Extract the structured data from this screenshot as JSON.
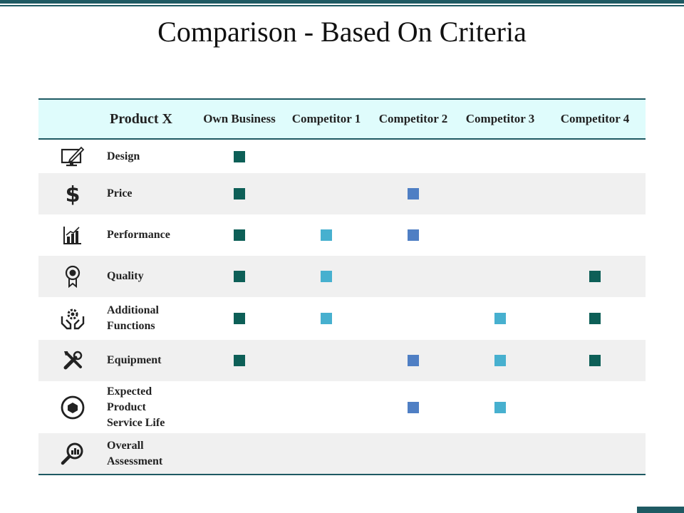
{
  "title": "Comparison - Based On Criteria",
  "colors": {
    "accent": "#1f5a63",
    "header_bg": "#dffcfc",
    "row_shade": "#f0f0f0",
    "own_business": "#0d5f57",
    "competitor_light": "#47b0cf",
    "competitor_blue": "#4f7fc4"
  },
  "header": {
    "product": "Product X",
    "columns": [
      "Own Business",
      "Competitor 1",
      "Competitor 2",
      "Competitor 3",
      "Competitor 4"
    ]
  },
  "rows": [
    {
      "icon": "monitor-pen-icon",
      "label": "Design",
      "marks": [
        "dark",
        null,
        null,
        null,
        null
      ]
    },
    {
      "icon": "dollar-icon",
      "label": "Price",
      "marks": [
        "dark",
        null,
        "blue",
        null,
        null
      ]
    },
    {
      "icon": "bar-chart-icon",
      "label": "Performance",
      "marks": [
        "dark",
        "light",
        "blue",
        null,
        null
      ]
    },
    {
      "icon": "award-ribbon-icon",
      "label": "Quality",
      "marks": [
        "dark",
        "light",
        null,
        null,
        "dark"
      ]
    },
    {
      "icon": "hands-gear-icon",
      "label_lines": [
        "Additional",
        "Functions"
      ],
      "marks": [
        "dark",
        "light",
        null,
        "light",
        "dark"
      ]
    },
    {
      "icon": "tools-icon",
      "label": "Equipment",
      "marks": [
        "dark",
        null,
        "blue",
        "light",
        "dark"
      ]
    },
    {
      "icon": "cycle-box-icon",
      "label_lines": [
        "Expected",
        "Product",
        "Service Life"
      ],
      "marks": [
        null,
        null,
        "blue",
        "light",
        null
      ]
    },
    {
      "icon": "magnifier-chart-icon",
      "label_lines": [
        "Overall",
        "Assessment"
      ],
      "marks": [
        null,
        null,
        null,
        null,
        null
      ]
    }
  ]
}
